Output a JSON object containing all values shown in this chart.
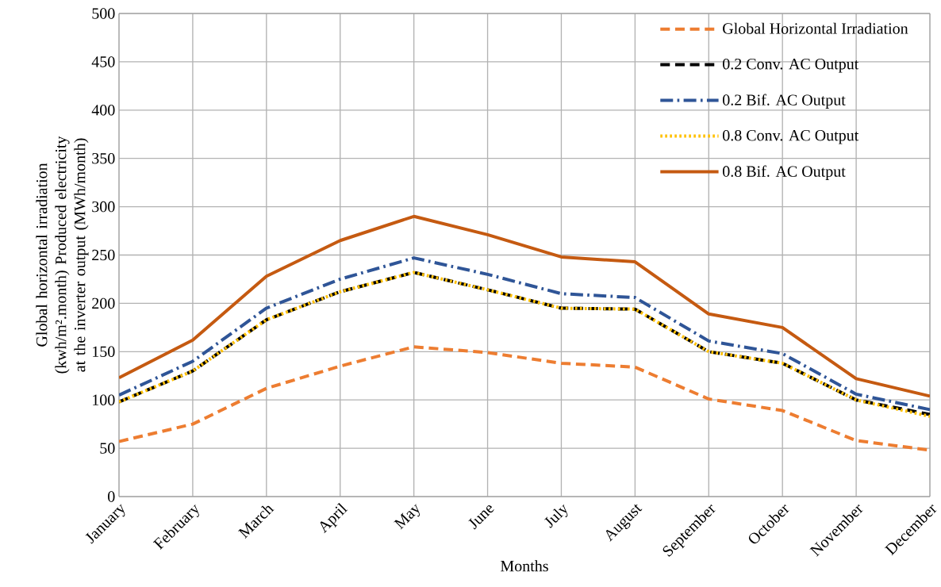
{
  "chart_data": {
    "type": "line",
    "xlabel": "Months",
    "ylabel": "Global horizontal irradiation (kwh/m².month) Produced electricity at the inverter output (MWh/month)",
    "categories": [
      "January",
      "February",
      "March",
      "April",
      "May",
      "June",
      "July",
      "August",
      "September",
      "October",
      "November",
      "December"
    ],
    "series": [
      {
        "name": "Global Horizontal Irradiation",
        "color": "#ed7d31",
        "line_style": "dashed",
        "values": [
          57,
          75,
          112,
          135,
          155,
          149,
          138,
          134,
          101,
          89,
          58,
          48
        ]
      },
      {
        "name": "0.2 Conv. AC Output",
        "color": "#000000",
        "line_style": "dashed",
        "values": [
          98,
          130,
          183,
          212,
          232,
          214,
          195,
          194,
          150,
          138,
          100,
          85
        ]
      },
      {
        "name": "0.2 Bif. AC Output",
        "color": "#2f5597",
        "line_style": "dashdot",
        "values": [
          105,
          140,
          195,
          225,
          247,
          230,
          210,
          206,
          161,
          148,
          106,
          90
        ]
      },
      {
        "name": "0.8 Conv. AC Output",
        "color": "#ffc000",
        "line_style": "dotted",
        "values": [
          98,
          130,
          183,
          212,
          232,
          214,
          195,
          194,
          150,
          138,
          100,
          83
        ]
      },
      {
        "name": "0.8 Bif. AC Output",
        "color": "#c55a11",
        "line_style": "solid",
        "values": [
          123,
          162,
          228,
          265,
          290,
          271,
          248,
          243,
          189,
          175,
          122,
          104
        ]
      }
    ],
    "ylim": [
      0,
      500
    ],
    "yticks": [
      0,
      50,
      100,
      150,
      200,
      250,
      300,
      350,
      400,
      450,
      500
    ],
    "grid": true,
    "legend": "top right",
    "marker": "none"
  }
}
